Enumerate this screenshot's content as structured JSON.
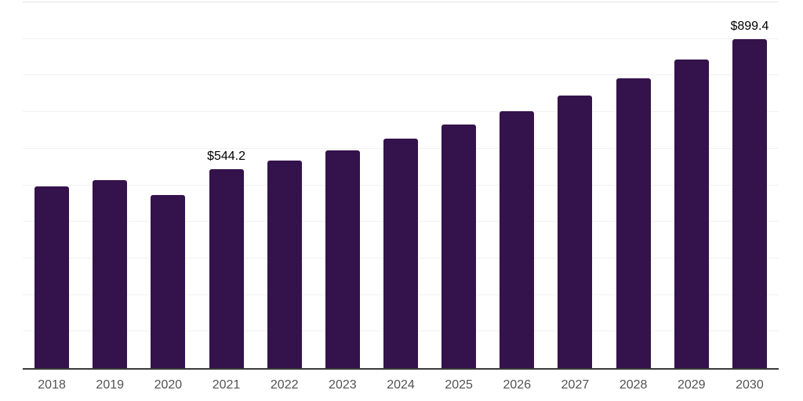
{
  "chart_data": {
    "type": "bar",
    "title": "",
    "xlabel": "",
    "ylabel": "",
    "categories": [
      "2018",
      "2019",
      "2020",
      "2021",
      "2022",
      "2023",
      "2024",
      "2025",
      "2026",
      "2027",
      "2028",
      "2029",
      "2030"
    ],
    "values": [
      497,
      514,
      473,
      544.2,
      567,
      595,
      627,
      666,
      702,
      745,
      792,
      844,
      899.4
    ],
    "value_labels": [
      "",
      "",
      "",
      "$544.2",
      "",
      "",
      "",
      "",
      "",
      "",
      "",
      "",
      "$899.4"
    ],
    "ylim": [
      0,
      1000
    ],
    "gridline_step": 100,
    "grid": "horizontal",
    "legend": "none",
    "bar_color": "#34124b",
    "axis_line_color": "#3a3a3a",
    "value_label_color": "#000000",
    "tick_label_color": "#525252"
  }
}
